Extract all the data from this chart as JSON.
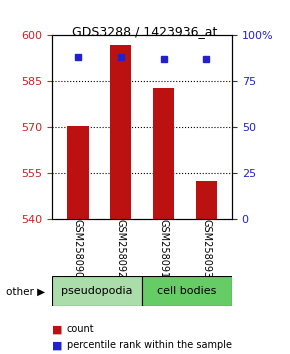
{
  "title": "GDS3288 / 1423936_at",
  "categories": [
    "GSM258090",
    "GSM258092",
    "GSM258091",
    "GSM258093"
  ],
  "bar_values": [
    570.5,
    597.0,
    583.0,
    552.5
  ],
  "percentile_values": [
    88,
    88,
    87,
    87
  ],
  "bar_color": "#bb1111",
  "marker_color": "#2222cc",
  "ylim_left": [
    540,
    600
  ],
  "ylim_right": [
    0,
    100
  ],
  "yticks_left": [
    540,
    555,
    570,
    585,
    600
  ],
  "yticks_right": [
    0,
    25,
    50,
    75,
    100
  ],
  "ytick_labels_right": [
    "0",
    "25",
    "50",
    "75",
    "100%"
  ],
  "grid_values": [
    555,
    570,
    585
  ],
  "group_labels": [
    "pseudopodia",
    "cell bodies"
  ],
  "group_colors": [
    "#aaddaa",
    "#66cc66"
  ],
  "group_ranges": [
    [
      0,
      2
    ],
    [
      2,
      4
    ]
  ],
  "other_label": "other",
  "legend_items": [
    "count",
    "percentile rank within the sample"
  ],
  "legend_colors": [
    "#bb1111",
    "#2222cc"
  ],
  "bar_width": 0.5,
  "baseline": 540,
  "left_label_color": "#cc2222",
  "right_label_color": "#2222cc",
  "bg_color": "#ffffff",
  "plot_bg": "#ffffff"
}
